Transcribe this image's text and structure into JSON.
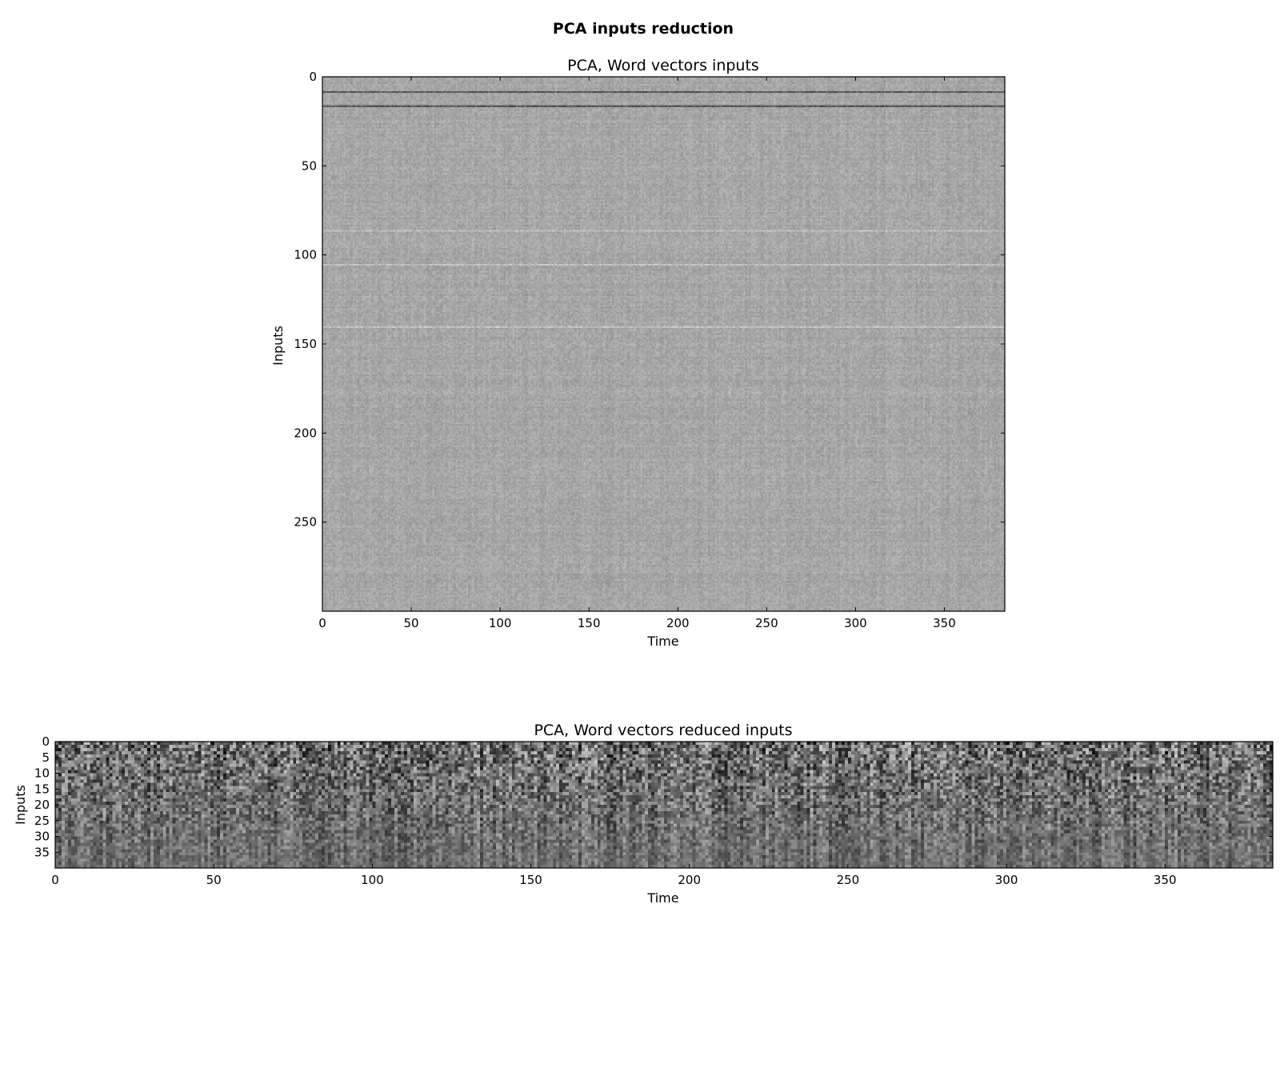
{
  "figure": {
    "suptitle": "PCA inputs reduction"
  },
  "chart_data": [
    {
      "type": "heatmap",
      "title": "PCA, Word vectors inputs",
      "xlabel": "Time",
      "ylabel": "Inputs",
      "colormap": "gray",
      "x_range": [
        0,
        384
      ],
      "y_range": [
        0,
        300
      ],
      "y_inverted": true,
      "x_ticks": [
        0,
        50,
        100,
        150,
        200,
        250,
        300,
        350
      ],
      "y_ticks": [
        0,
        50,
        100,
        150,
        200,
        250
      ],
      "base_gray": "#a6a6a6",
      "noise_amplitude": 0.1,
      "dark_rows": [
        8,
        16
      ],
      "light_rows": [
        86,
        105,
        140
      ],
      "grid": false
    },
    {
      "type": "heatmap",
      "title": "PCA, Word vectors reduced inputs",
      "xlabel": "Time",
      "ylabel": "Inputs",
      "colormap": "gray",
      "x_range": [
        0,
        384
      ],
      "y_range": [
        0,
        40
      ],
      "y_inverted": true,
      "x_ticks": [
        0,
        50,
        100,
        150,
        200,
        250,
        300,
        350
      ],
      "y_ticks": [
        0,
        5,
        10,
        15,
        20,
        25,
        30,
        35
      ],
      "base_gray": "#6e6e6e",
      "noise_amplitude": 0.45,
      "grid": false
    }
  ]
}
